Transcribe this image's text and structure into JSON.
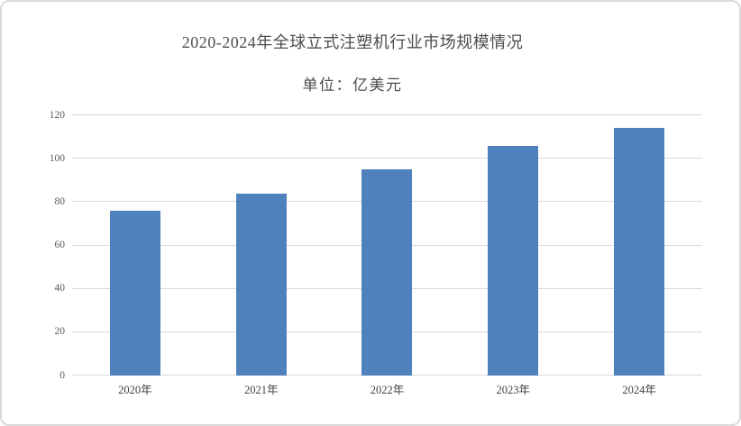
{
  "chart_data": {
    "type": "bar",
    "title": "2020-2024年全球立式注塑机行业市场规模情况",
    "subtitle": "单位：亿美元",
    "unit": "亿美元",
    "categories": [
      "2020年",
      "2021年",
      "2022年",
      "2023年",
      "2024年"
    ],
    "values": [
      76,
      84,
      95,
      106,
      114
    ],
    "xlabel": "",
    "ylabel": "",
    "ylim": [
      0,
      120
    ],
    "yticks": [
      0,
      20,
      40,
      60,
      80,
      100,
      120
    ],
    "grid": true,
    "legend": "none",
    "bar_color": "#4f81bd"
  },
  "colors": {
    "bar": "#4f81bd",
    "gridline": "#d9d9d9",
    "canvas_border": "#d9d9d9",
    "title_text": "#4c4c4c",
    "y_tick_text": "#595959",
    "x_tick_text": "#3f3f3f",
    "background": "#ffffff"
  }
}
